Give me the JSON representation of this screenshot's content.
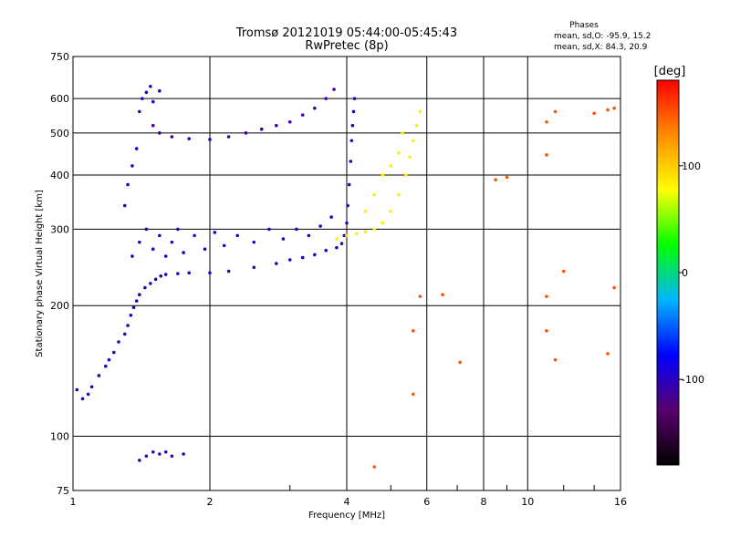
{
  "chart_data": {
    "type": "scatter",
    "title": "Tromsø 20121019 05:44:00-05:45:43",
    "subtitle": "RwPretec (8p)",
    "xlabel": "Frequency [MHz]",
    "ylabel": "Stationary phase Virtual Height [km]",
    "x_scale": "log",
    "y_scale": "log",
    "xlim": [
      1,
      16
    ],
    "ylim": [
      75,
      750
    ],
    "x_ticks": [
      1,
      2,
      4,
      6,
      8,
      10,
      16
    ],
    "x_tick_labels": [
      "1",
      "2",
      "4",
      "6",
      "8",
      "10",
      "16"
    ],
    "x_minor_ticks": [
      3,
      5,
      7,
      9,
      12,
      14
    ],
    "y_ticks": [
      75,
      100,
      200,
      300,
      400,
      500,
      600,
      750
    ],
    "y_tick_labels": [
      "75",
      "100",
      "200",
      "300",
      "400",
      "500",
      "600",
      "750"
    ],
    "grid": true,
    "stats": {
      "heading": "Phases",
      "line_o": "mean, sd,O: -95.9, 15.2",
      "line_x": "mean, sd,X:  84.3, 20.9"
    },
    "colorbar": {
      "label": "[deg]",
      "range": [
        -180,
        180
      ],
      "ticks": [
        100,
        0,
        -100
      ],
      "tick_labels": [
        "100",
        "0",
        "-100"
      ],
      "colors": [
        "#000000",
        "#5a006e",
        "#0000ff",
        "#00b4ff",
        "#00ff00",
        "#ffff00",
        "#ff8c00",
        "#ff0000"
      ]
    },
    "series": [
      {
        "trace": "o-mode-lower-layer",
        "phase_deg": -100,
        "points": [
          [
            1.02,
            128
          ],
          [
            1.05,
            122
          ],
          [
            1.08,
            125
          ],
          [
            1.1,
            130
          ],
          [
            1.14,
            138
          ],
          [
            1.18,
            145
          ],
          [
            1.2,
            150
          ],
          [
            1.23,
            156
          ],
          [
            1.26,
            165
          ],
          [
            1.3,
            172
          ],
          [
            1.32,
            180
          ],
          [
            1.34,
            190
          ],
          [
            1.36,
            198
          ],
          [
            1.38,
            205
          ],
          [
            1.4,
            212
          ],
          [
            1.44,
            220
          ],
          [
            1.48,
            225
          ],
          [
            1.52,
            230
          ],
          [
            1.56,
            234
          ],
          [
            1.6,
            236
          ],
          [
            1.7,
            237
          ],
          [
            1.8,
            238
          ],
          [
            2.0,
            238
          ],
          [
            2.2,
            240
          ],
          [
            2.5,
            245
          ],
          [
            2.8,
            250
          ],
          [
            3.0,
            255
          ],
          [
            3.2,
            258
          ],
          [
            3.4,
            262
          ],
          [
            3.6,
            268
          ],
          [
            3.8,
            272
          ],
          [
            3.9,
            278
          ],
          [
            3.95,
            290
          ],
          [
            4.0,
            310
          ],
          [
            4.02,
            340
          ],
          [
            4.05,
            380
          ],
          [
            4.08,
            430
          ],
          [
            4.1,
            480
          ],
          [
            4.12,
            520
          ],
          [
            4.14,
            560
          ],
          [
            4.16,
            600
          ]
        ]
      },
      {
        "trace": "o-mode-upper-layer",
        "phase_deg": -110,
        "points": [
          [
            1.4,
            560
          ],
          [
            1.5,
            520
          ],
          [
            1.55,
            500
          ],
          [
            1.65,
            490
          ],
          [
            1.8,
            485
          ],
          [
            2.0,
            483
          ],
          [
            2.2,
            490
          ],
          [
            2.4,
            500
          ],
          [
            2.6,
            510
          ],
          [
            2.8,
            520
          ],
          [
            3.0,
            530
          ],
          [
            3.2,
            550
          ],
          [
            3.4,
            570
          ],
          [
            3.6,
            600
          ],
          [
            3.75,
            630
          ]
        ]
      },
      {
        "trace": "o-mode-spread",
        "phase_deg": -95,
        "points": [
          [
            1.35,
            260
          ],
          [
            1.4,
            280
          ],
          [
            1.45,
            300
          ],
          [
            1.5,
            270
          ],
          [
            1.55,
            290
          ],
          [
            1.6,
            260
          ],
          [
            1.65,
            280
          ],
          [
            1.7,
            300
          ],
          [
            1.75,
            265
          ],
          [
            1.85,
            290
          ],
          [
            1.95,
            270
          ],
          [
            2.05,
            295
          ],
          [
            2.15,
            275
          ],
          [
            2.3,
            290
          ],
          [
            2.5,
            280
          ],
          [
            2.7,
            300
          ],
          [
            2.9,
            285
          ],
          [
            3.1,
            300
          ],
          [
            3.3,
            290
          ],
          [
            3.5,
            305
          ],
          [
            3.7,
            320
          ],
          [
            1.3,
            340
          ],
          [
            1.32,
            380
          ],
          [
            1.35,
            420
          ],
          [
            1.38,
            460
          ],
          [
            1.42,
            600
          ],
          [
            1.45,
            620
          ],
          [
            1.5,
            590
          ],
          [
            1.48,
            640
          ],
          [
            1.55,
            625
          ]
        ]
      },
      {
        "trace": "o-mode-sporadic-echo",
        "phase_deg": -105,
        "points": [
          [
            1.45,
            90
          ],
          [
            1.5,
            92
          ],
          [
            1.55,
            91
          ],
          [
            1.6,
            92
          ],
          [
            1.65,
            90
          ],
          [
            1.75,
            91
          ],
          [
            1.4,
            88
          ]
        ]
      },
      {
        "trace": "x-mode",
        "phase_deg": 84,
        "points": [
          [
            3.8,
            285
          ],
          [
            4.0,
            290
          ],
          [
            4.2,
            293
          ],
          [
            4.4,
            296
          ],
          [
            4.6,
            300
          ],
          [
            4.8,
            310
          ],
          [
            5.0,
            330
          ],
          [
            5.2,
            360
          ],
          [
            5.4,
            400
          ],
          [
            5.5,
            440
          ],
          [
            5.6,
            480
          ],
          [
            5.7,
            520
          ],
          [
            5.8,
            560
          ],
          [
            4.6,
            360
          ],
          [
            4.8,
            400
          ],
          [
            5.0,
            420
          ],
          [
            5.2,
            450
          ],
          [
            4.4,
            330
          ],
          [
            5.3,
            500
          ]
        ]
      },
      {
        "trace": "scattered-echoes",
        "phase_deg": 150,
        "points": [
          [
            4.6,
            85
          ],
          [
            5.6,
            125
          ],
          [
            5.6,
            175
          ],
          [
            5.8,
            210
          ],
          [
            6.5,
            212
          ],
          [
            7.1,
            148
          ],
          [
            8.5,
            390
          ],
          [
            9.0,
            395
          ],
          [
            11.0,
            530
          ],
          [
            11.0,
            445
          ],
          [
            11.5,
            560
          ],
          [
            12.0,
            240
          ],
          [
            11.5,
            150
          ],
          [
            14.0,
            555
          ],
          [
            15.0,
            565
          ],
          [
            15.5,
            570
          ],
          [
            15.5,
            220
          ],
          [
            15.0,
            155
          ],
          [
            11.0,
            175
          ],
          [
            11.0,
            210
          ]
        ]
      }
    ]
  }
}
